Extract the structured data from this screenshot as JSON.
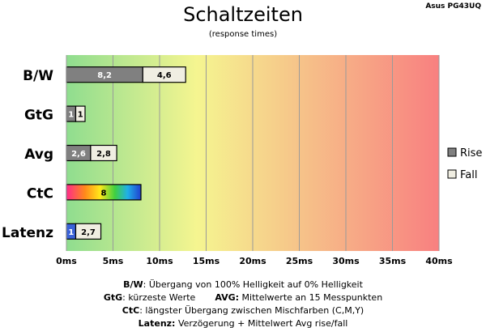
{
  "title": "Schaltzeiten",
  "subtitle": "(response times)",
  "model": "Asus PG43UQ",
  "chart_data": {
    "type": "bar",
    "orientation": "horizontal",
    "stacked": true,
    "categories": [
      "B/W",
      "GtG",
      "Avg",
      "CtC",
      "Latenz"
    ],
    "series": [
      {
        "name": "Rise",
        "values": [
          8.2,
          1,
          2.6,
          8,
          1
        ],
        "color": "#808080"
      },
      {
        "name": "Fall",
        "values": [
          4.6,
          1,
          2.8,
          null,
          2.7
        ],
        "color": "#f0eee2"
      }
    ],
    "bar_styles": {
      "CtC": "rainbow",
      "Latenz_first": "#3a62d8"
    },
    "xlim": [
      0,
      40
    ],
    "xticks": [
      0,
      5,
      10,
      15,
      20,
      25,
      30,
      35,
      40
    ],
    "xtick_suffix": "ms",
    "background_gradient": [
      "#8fdd8f",
      "#f5f590",
      "#f88080"
    ],
    "grid": true,
    "legend_position": "right"
  },
  "footer": {
    "line1_key": "B/W",
    "line1_text": ":  Übergang von 100% Helligkeit auf 0% Helligkeit",
    "line2_key_a": "GtG",
    "line2_text_a": ": kürzeste  Werte",
    "line2_key_b": "AVG:",
    "line2_text_b": " Mittelwerte  an 15 Messpunkten",
    "line3_key": "CtC",
    "line3_text": ": längster Übergang  zwischen Mischfarben  (C,M,Y)",
    "line4_key": "Latenz:",
    "line4_text": " Verzögerung  + Mittelwert  Avg rise/fall"
  }
}
